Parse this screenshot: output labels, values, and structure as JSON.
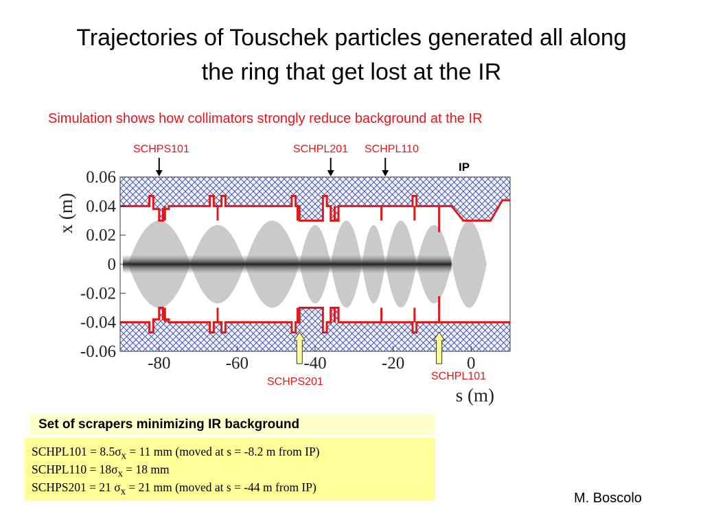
{
  "slide": {
    "title_line1": "Trajectories of Touschek particles generated all along",
    "title_line2": "the ring that get lost at the IR",
    "subtitle": "Simulation shows how collimators strongly reduce background at the IR",
    "author": "M. Boscolo"
  },
  "annotations": {
    "top": [
      {
        "label": "SCHPS101",
        "s": -80
      },
      {
        "label": "SCHPL201",
        "s": -36
      },
      {
        "label": "SCHPL110",
        "s": -22
      }
    ],
    "bottom": [
      {
        "label": "SCHPS201",
        "s": -44
      },
      {
        "label": "SCHPL101",
        "s": -8.2
      }
    ],
    "ip_label": "IP"
  },
  "chart_data": {
    "type": "line",
    "xlabel": "s (m)",
    "ylabel": "x (m)",
    "xlim": [
      -90,
      10
    ],
    "ylim": [
      -0.06,
      0.06
    ],
    "xticks": [
      -80,
      -60,
      -40,
      -20,
      0
    ],
    "xtick_labels": [
      "-80",
      "-60",
      "-40",
      "-20",
      "0"
    ],
    "yticks": [
      0.06,
      0.04,
      0.02,
      0,
      -0.02,
      -0.04,
      -0.06
    ],
    "ytick_labels": [
      "0.06",
      "0.04",
      "0.02",
      "0",
      "-0.02",
      "-0.04",
      "-0.06"
    ],
    "series": [
      {
        "x": [
          -90,
          -82.5,
          -82.5,
          -81.5,
          -81.5,
          -80,
          -80,
          -79,
          -79,
          -77.5,
          -77.5,
          -67,
          -67,
          -66,
          -66,
          -64,
          -64,
          -63,
          -63,
          -46,
          -46,
          -45,
          -45,
          -44,
          -44,
          -38,
          -38,
          -37,
          -37,
          -36,
          -36,
          -34,
          -34,
          -15,
          -15,
          -14,
          -14,
          -12.5,
          -12.5,
          -5,
          -2,
          5,
          8,
          10
        ],
        "y": [
          0.04,
          0.04,
          0.047,
          0.047,
          0.038,
          0.038,
          0.03,
          0.03,
          0.038,
          0.038,
          0.04,
          0.04,
          0.047,
          0.047,
          0.04,
          0.04,
          0.047,
          0.047,
          0.04,
          0.04,
          0.047,
          0.047,
          0.04,
          0.04,
          0.03,
          0.03,
          0.047,
          0.047,
          0.04,
          0.04,
          0.03,
          0.03,
          0.04,
          0.04,
          0.047,
          0.047,
          0.04,
          0.04,
          0.04,
          0.04,
          0.03,
          0.03,
          0.044,
          0.044
        ],
        "color": "#e01818"
      },
      {
        "x": [
          -90,
          -82.5,
          -82.5,
          -81.5,
          -81.5,
          -80,
          -80,
          -79,
          -79,
          -77.5,
          -77.5,
          -67,
          -67,
          -66,
          -66,
          -64,
          -64,
          -63,
          -63,
          -46,
          -46,
          -45,
          -45,
          -44,
          -44,
          -38,
          -38,
          -37,
          -37,
          -36,
          -36,
          -34,
          -34,
          -15,
          -15,
          -14,
          -14,
          -12.5,
          -12.5,
          -5,
          -2,
          5,
          8,
          10
        ],
        "y": [
          -0.04,
          -0.04,
          -0.047,
          -0.047,
          -0.038,
          -0.038,
          -0.03,
          -0.03,
          -0.038,
          -0.038,
          -0.04,
          -0.04,
          -0.047,
          -0.047,
          -0.04,
          -0.04,
          -0.047,
          -0.047,
          -0.04,
          -0.04,
          -0.047,
          -0.047,
          -0.04,
          -0.04,
          -0.03,
          -0.03,
          -0.047,
          -0.047,
          -0.04,
          -0.04,
          -0.03,
          -0.03,
          -0.04,
          -0.04,
          -0.047,
          -0.047,
          -0.04,
          -0.04,
          -0.04,
          -0.04,
          -0.04,
          -0.04,
          -0.04,
          -0.04
        ],
        "color": "#e01818"
      }
    ]
  },
  "panel": {
    "heading": "Set of scrapers minimizing IR background",
    "line1_prefix": "SCHPL101 = 8.5σ",
    "line1_sub": "x",
    "line1_suffix": " = 11 mm  (moved at s = -8.2 m from IP)",
    "line2_prefix": "SCHPL110 = 18σ",
    "line2_sub": "x",
    "line2_suffix": " =  18 mm",
    "line3_prefix": "SCHPS201 = 21 σ",
    "line3_sub": "x",
    "line3_suffix": " = 21 mm  (moved at s = -44 m from IP)"
  }
}
